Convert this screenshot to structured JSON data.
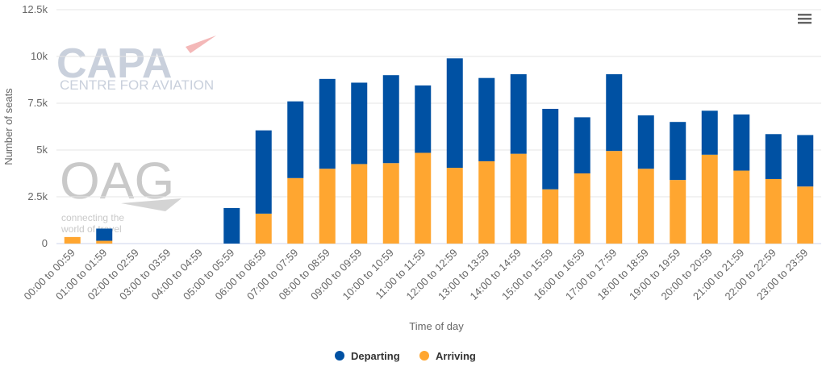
{
  "menu_icon": "hamburger-menu-icon",
  "watermarks": {
    "capa_logo": "CAPA",
    "capa_sub": "CENTRE FOR AVIATION",
    "oag_logo": "OAG",
    "oag_line1": "connecting the",
    "oag_line2": "world of travel"
  },
  "chart_data": {
    "type": "bar",
    "stacked": true,
    "xlabel": "Time of day",
    "ylabel": "Number of seats",
    "ylim": [
      0,
      12500
    ],
    "y_ticks": [
      "0",
      "2.5k",
      "5k",
      "7.5k",
      "10k",
      "12.5k"
    ],
    "y_tick_values": [
      0,
      2500,
      5000,
      7500,
      10000,
      12500
    ],
    "grid": true,
    "legend_position": "bottom-center",
    "categories": [
      "00:00 to 00:59",
      "01:00 to 01:59",
      "02:00 to 02:59",
      "03:00 to 03:59",
      "04:00 to 04:59",
      "05:00 to 05:59",
      "06:00 to 06:59",
      "07:00 to 07:59",
      "08:00 to 08:59",
      "09:00 to 09:59",
      "10:00 to 10:59",
      "11:00 to 11:59",
      "12:00 to 12:59",
      "13:00 to 13:59",
      "14:00 to 14:59",
      "15:00 to 15:59",
      "16:00 to 16:59",
      "17:00 to 17:59",
      "18:00 to 18:59",
      "19:00 to 19:59",
      "20:00 to 20:59",
      "21:00 to 21:59",
      "22:00 to 22:59",
      "23:00 to 23:59"
    ],
    "series": [
      {
        "name": "Departing",
        "color": "#0051a3",
        "values": [
          0,
          650,
          0,
          0,
          0,
          1900,
          4450,
          4100,
          4800,
          4350,
          4700,
          3600,
          5850,
          4450,
          4250,
          4300,
          3000,
          4100,
          2850,
          3100,
          2350,
          3000,
          2400,
          2750
        ]
      },
      {
        "name": "Arriving",
        "color": "#ffa630",
        "values": [
          350,
          150,
          0,
          0,
          0,
          0,
          1600,
          3500,
          4000,
          4250,
          4300,
          4850,
          4050,
          4400,
          4800,
          2900,
          3750,
          4950,
          4000,
          3400,
          4750,
          3900,
          3450,
          3050
        ]
      }
    ]
  }
}
